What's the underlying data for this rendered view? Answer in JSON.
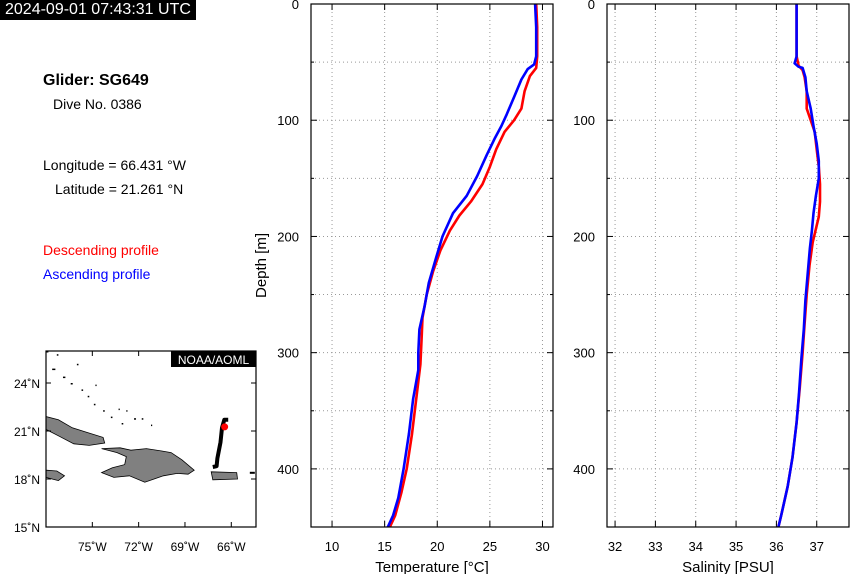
{
  "header": {
    "timestamp": "2024-09-01 07:43:31 UTC",
    "glider": "Glider: SG649",
    "dive": "Dive No. 0386",
    "longitude": "Longitude = 66.431 °W",
    "latitude": "Latitude = 21.261 °N"
  },
  "legend": {
    "descending": "Descending profile",
    "ascending": "Ascending profile",
    "descending_color": "#ff0000",
    "ascending_color": "#0000ff"
  },
  "map": {
    "credit": "NOAA/AOML",
    "lat_ticks": [
      "24˚N",
      "21˚N",
      "18˚N",
      "15˚N"
    ],
    "lon_ticks": [
      "75˚W",
      "72˚W",
      "69˚W",
      "66˚W"
    ],
    "lat_range": [
      15,
      26
    ],
    "lon_range": [
      -78,
      -64.4
    ],
    "land_color": "#808080",
    "track_color": "#000000",
    "position_color": "#ff0000",
    "glider_track": [
      [
        -66.2,
        21.7
      ],
      [
        -66.45,
        21.7
      ],
      [
        -66.6,
        21.2
      ],
      [
        -66.7,
        20.3
      ],
      [
        -66.9,
        19.3
      ],
      [
        -66.95,
        18.8
      ],
      [
        -67.2,
        18.75
      ]
    ],
    "glider_position": [
      -66.43,
      21.26
    ]
  },
  "chart_data": [
    {
      "type": "line",
      "xlabel": "Temperature [°C]",
      "ylabel": "Depth [m]",
      "xlim": [
        8,
        31
      ],
      "ylim": [
        0,
        450
      ],
      "y_inverted": true,
      "x_ticks": [
        "10",
        "15",
        "20",
        "25",
        "30"
      ],
      "y_ticks": [
        "0",
        "100",
        "200",
        "300",
        "400"
      ],
      "grid": true,
      "series": [
        {
          "name": "Descending profile",
          "color": "#ff0000",
          "points": [
            [
              29.4,
              0
            ],
            [
              29.5,
              20
            ],
            [
              29.5,
              45
            ],
            [
              29.4,
              55
            ],
            [
              28.8,
              62
            ],
            [
              28.3,
              75
            ],
            [
              28.0,
              90
            ],
            [
              27.3,
              100
            ],
            [
              26.4,
              110
            ],
            [
              25.6,
              125
            ],
            [
              25.0,
              140
            ],
            [
              24.3,
              155
            ],
            [
              23.2,
              170
            ],
            [
              22.1,
              182
            ],
            [
              21.2,
              195
            ],
            [
              20.3,
              212
            ],
            [
              19.6,
              230
            ],
            [
              19.0,
              250
            ],
            [
              18.6,
              270
            ],
            [
              18.5,
              290
            ],
            [
              18.4,
              310
            ],
            [
              18.0,
              340
            ],
            [
              17.6,
              370
            ],
            [
              17.1,
              400
            ],
            [
              16.6,
              420
            ],
            [
              16.0,
              440
            ],
            [
              15.5,
              450
            ]
          ]
        },
        {
          "name": "Ascending profile",
          "color": "#0000ff",
          "points": [
            [
              29.3,
              0
            ],
            [
              29.4,
              20
            ],
            [
              29.4,
              45
            ],
            [
              29.2,
              52
            ],
            [
              28.6,
              56
            ],
            [
              28.0,
              65
            ],
            [
              27.3,
              80
            ],
            [
              26.6,
              95
            ],
            [
              26.1,
              105
            ],
            [
              25.5,
              115
            ],
            [
              24.7,
              130
            ],
            [
              23.8,
              148
            ],
            [
              22.8,
              165
            ],
            [
              21.5,
              180
            ],
            [
              20.5,
              200
            ],
            [
              19.9,
              218
            ],
            [
              19.2,
              240
            ],
            [
              18.8,
              260
            ],
            [
              18.3,
              280
            ],
            [
              18.2,
              300
            ],
            [
              18.2,
              315
            ],
            [
              17.7,
              340
            ],
            [
              17.3,
              370
            ],
            [
              16.8,
              400
            ],
            [
              16.3,
              425
            ],
            [
              15.8,
              440
            ],
            [
              15.3,
              450
            ]
          ]
        }
      ]
    },
    {
      "type": "line",
      "xlabel": "Salinity [PSU]",
      "ylabel": "",
      "xlim": [
        31.8,
        37.8
      ],
      "ylim": [
        0,
        450
      ],
      "y_inverted": true,
      "x_ticks": [
        "32",
        "33",
        "34",
        "35",
        "36",
        "37"
      ],
      "y_ticks": [
        "0",
        "100",
        "200",
        "300",
        "400"
      ],
      "grid": true,
      "series": [
        {
          "name": "Descending profile",
          "color": "#ff0000",
          "points": [
            [
              36.5,
              0
            ],
            [
              36.5,
              25
            ],
            [
              36.5,
              45
            ],
            [
              36.55,
              53
            ],
            [
              36.65,
              57
            ],
            [
              36.7,
              63
            ],
            [
              36.75,
              75
            ],
            [
              36.75,
              90
            ],
            [
              36.85,
              100
            ],
            [
              36.95,
              110
            ],
            [
              37.0,
              125
            ],
            [
              37.05,
              140
            ],
            [
              37.08,
              155
            ],
            [
              37.08,
              170
            ],
            [
              37.05,
              183
            ],
            [
              36.97,
              195
            ],
            [
              36.9,
              205
            ],
            [
              36.82,
              225
            ],
            [
              36.75,
              250
            ],
            [
              36.7,
              275
            ],
            [
              36.65,
              300
            ],
            [
              36.58,
              330
            ],
            [
              36.5,
              360
            ],
            [
              36.4,
              390
            ],
            [
              36.28,
              415
            ],
            [
              36.12,
              440
            ],
            [
              36.05,
              450
            ]
          ]
        },
        {
          "name": "Ascending profile",
          "color": "#0000ff",
          "points": [
            [
              36.5,
              0
            ],
            [
              36.5,
              20
            ],
            [
              36.5,
              45
            ],
            [
              36.45,
              51
            ],
            [
              36.55,
              54
            ],
            [
              36.65,
              55
            ],
            [
              36.72,
              63
            ],
            [
              36.75,
              75
            ],
            [
              36.85,
              90
            ],
            [
              36.92,
              105
            ],
            [
              37.0,
              120
            ],
            [
              37.05,
              135
            ],
            [
              37.05,
              150
            ],
            [
              36.98,
              165
            ],
            [
              36.92,
              180
            ],
            [
              36.88,
              195
            ],
            [
              36.83,
              210
            ],
            [
              36.78,
              230
            ],
            [
              36.72,
              255
            ],
            [
              36.68,
              280
            ],
            [
              36.62,
              305
            ],
            [
              36.56,
              335
            ],
            [
              36.5,
              360
            ],
            [
              36.4,
              390
            ],
            [
              36.28,
              415
            ],
            [
              36.12,
              440
            ],
            [
              36.05,
              450
            ]
          ]
        }
      ]
    }
  ]
}
